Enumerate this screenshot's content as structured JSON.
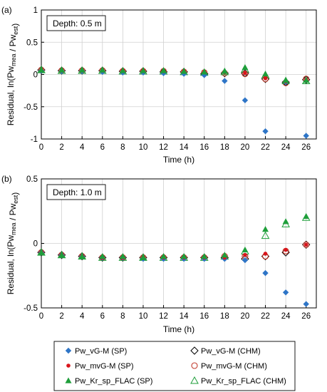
{
  "chart_data": [
    {
      "type": "scatter",
      "panel_label": "(a)",
      "annotation": "Depth: 0.5 m",
      "xlabel": "Time (h)",
      "ylabel_main": "Residual, ln(Pw",
      "ylabel_sub1": "mea",
      "ylabel_mid": " / Pw",
      "ylabel_sub2": "est",
      "ylabel_end": ")",
      "xlim": [
        0,
        27
      ],
      "ylim": [
        -1,
        1
      ],
      "xticks": [
        0,
        2,
        4,
        6,
        8,
        10,
        12,
        14,
        16,
        18,
        20,
        22,
        24,
        26
      ],
      "xtick_labels": [
        "0",
        "2",
        "4",
        "6",
        "8",
        "10",
        "12",
        "14",
        "16",
        "18",
        "20",
        "22",
        "24",
        "26"
      ],
      "yticks": [
        -1,
        -0.5,
        0,
        0.5,
        1
      ],
      "ytick_labels": [
        "-1",
        "-0.5",
        "0",
        "0.5",
        "1"
      ],
      "grid": true,
      "x": [
        0,
        2,
        4,
        6,
        8,
        10,
        12,
        14,
        16,
        18,
        20,
        22,
        24,
        26
      ],
      "series": [
        {
          "name": "Pw_vG-M (SP)",
          "values": [
            0.06,
            0.05,
            0.05,
            0.04,
            0.03,
            0.03,
            0.02,
            0.01,
            -0.01,
            -0.1,
            -0.4,
            -0.88,
            -0.12,
            -0.95
          ]
        },
        {
          "name": "Pw_vG-M (CHM)",
          "values": [
            0.07,
            0.06,
            0.06,
            0.06,
            0.05,
            0.05,
            0.04,
            0.04,
            0.01,
            0.02,
            0.02,
            -0.07,
            -0.12,
            -0.08
          ]
        },
        {
          "name": "Pw_mvG-M (SP)",
          "values": [
            0.07,
            0.06,
            0.06,
            0.06,
            0.06,
            0.06,
            0.05,
            0.05,
            0.04,
            0.03,
            0.02,
            -0.06,
            -0.11,
            -0.08
          ]
        },
        {
          "name": "Pw_mvG-M (CHM)",
          "values": [
            0.07,
            0.06,
            0.06,
            0.06,
            0.05,
            0.05,
            0.05,
            0.04,
            0.03,
            0.02,
            0.01,
            -0.07,
            -0.13,
            -0.07
          ]
        },
        {
          "name": "Pw_Kr_sp_FLAC (SP)",
          "values": [
            0.07,
            0.07,
            0.07,
            0.07,
            0.06,
            0.06,
            0.06,
            0.05,
            0.04,
            0.05,
            0.11,
            0.01,
            -0.09,
            -0.09
          ]
        },
        {
          "name": "Pw_Kr_sp_FLAC (CHM)",
          "values": [
            0.07,
            0.06,
            0.06,
            0.06,
            0.05,
            0.05,
            0.05,
            0.04,
            0.03,
            0.04,
            0.08,
            -0.01,
            -0.1,
            -0.1
          ]
        }
      ]
    },
    {
      "type": "scatter",
      "panel_label": "(b)",
      "annotation": "Depth: 1.0 m",
      "xlabel": "Time (h)",
      "ylabel_main": "Residual, ln(Pw",
      "ylabel_sub1": "mea",
      "ylabel_mid": " / Pw",
      "ylabel_sub2": "est",
      "ylabel_end": ")",
      "xlim": [
        0,
        27
      ],
      "ylim": [
        -0.5,
        0.5
      ],
      "xticks": [
        0,
        2,
        4,
        6,
        8,
        10,
        12,
        14,
        16,
        18,
        20,
        22,
        24,
        26
      ],
      "xtick_labels": [
        "0",
        "2",
        "4",
        "6",
        "8",
        "10",
        "12",
        "14",
        "16",
        "18",
        "20",
        "22",
        "24",
        "26"
      ],
      "yticks": [
        -0.5,
        0,
        0.5
      ],
      "ytick_labels": [
        "-0.5",
        "0",
        "0.5"
      ],
      "grid": true,
      "x": [
        0,
        2,
        4,
        6,
        8,
        10,
        12,
        14,
        16,
        18,
        20,
        22,
        24,
        26
      ],
      "series": [
        {
          "name": "Pw_vG-M (SP)",
          "values": [
            -0.07,
            -0.09,
            -0.1,
            -0.11,
            -0.11,
            -0.12,
            -0.12,
            -0.12,
            -0.12,
            -0.12,
            -0.13,
            -0.23,
            -0.38,
            -0.47
          ]
        },
        {
          "name": "Pw_vG-M (CHM)",
          "values": [
            -0.07,
            -0.09,
            -0.1,
            -0.11,
            -0.11,
            -0.11,
            -0.11,
            -0.11,
            -0.11,
            -0.11,
            -0.12,
            -0.1,
            -0.07,
            -0.01
          ]
        },
        {
          "name": "Pw_mvG-M (SP)",
          "values": [
            -0.07,
            -0.09,
            -0.1,
            -0.11,
            -0.11,
            -0.11,
            -0.11,
            -0.11,
            -0.11,
            -0.11,
            -0.09,
            -0.08,
            -0.05,
            -0.01
          ]
        },
        {
          "name": "Pw_mvG-M (CHM)",
          "values": [
            -0.07,
            -0.09,
            -0.1,
            -0.11,
            -0.11,
            -0.11,
            -0.11,
            -0.11,
            -0.11,
            -0.1,
            -0.1,
            -0.1,
            -0.06,
            -0.01
          ]
        },
        {
          "name": "Pw_Kr_sp_FLAC (SP)",
          "values": [
            -0.07,
            -0.09,
            -0.1,
            -0.1,
            -0.1,
            -0.11,
            -0.1,
            -0.1,
            -0.1,
            -0.09,
            -0.05,
            0.11,
            0.17,
            0.21
          ]
        },
        {
          "name": "Pw_Kr_sp_FLAC (CHM)",
          "values": [
            -0.07,
            -0.09,
            -0.1,
            -0.11,
            -0.11,
            -0.11,
            -0.11,
            -0.11,
            -0.11,
            -0.1,
            -0.06,
            0.06,
            0.15,
            0.2
          ]
        }
      ]
    }
  ],
  "legend": {
    "placement": "bottom",
    "entries": [
      {
        "label": "Pw_vG-M (SP)",
        "marker": "diamond",
        "filled": true,
        "color": "#2e75c7"
      },
      {
        "label": "Pw_vG-M (CHM)",
        "marker": "diamond",
        "filled": false,
        "color": "#000000"
      },
      {
        "label": "Pw_mvG-M (SP)",
        "marker": "circle",
        "filled": true,
        "color": "#d9141b"
      },
      {
        "label": "Pw_mvG-M (CHM)",
        "marker": "circle",
        "filled": false,
        "color": "#c0392b"
      },
      {
        "label": "Pw_Kr_sp_FLAC (SP)",
        "marker": "triangle",
        "filled": true,
        "color": "#1e9e3a"
      },
      {
        "label": "Pw_Kr_sp_FLAC (CHM)",
        "marker": "triangle",
        "filled": false,
        "color": "#1e9e3a"
      }
    ]
  }
}
